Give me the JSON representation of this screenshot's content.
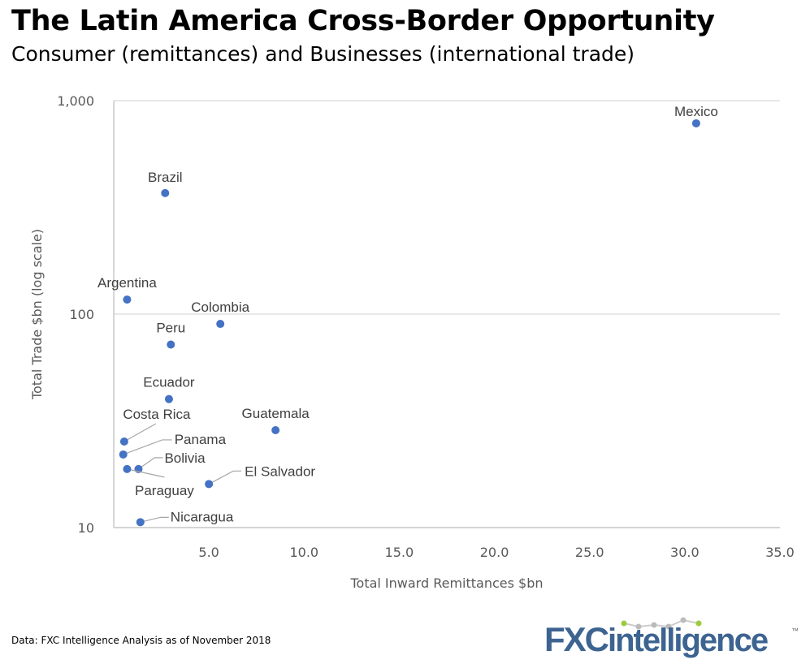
{
  "title": "The Latin America Cross-Border Opportunity",
  "subtitle": "Consumer (remittances) and Businesses (international trade)",
  "source": "Data: FXC Intelligence Analysis as of November 2018",
  "logo": {
    "text_fx": "FXC",
    "text_rest": "intelligence",
    "tm": "™",
    "color": "#3d6491",
    "accent": "#9ccc3c"
  },
  "chart_data": {
    "type": "scatter",
    "xlabel": "Total Inward Remittances $bn",
    "ylabel": "Total Trade $bn (log scale)",
    "xlim": [
      0,
      35
    ],
    "ylim": [
      10,
      1000
    ],
    "yscale": "log",
    "xticks": [
      5,
      10,
      15,
      20,
      25,
      30,
      35
    ],
    "xtick_labels": [
      "5.0",
      "10.0",
      "15.0",
      "20.0",
      "25.0",
      "30.0",
      "35.0"
    ],
    "yticks": [
      10,
      100,
      1000
    ],
    "ytick_labels": [
      "10",
      "100",
      "1,000"
    ],
    "grid": "horizontal",
    "point_color": "#4472c4",
    "points": [
      {
        "label": "Mexico",
        "x": 30.6,
        "y": 783
      },
      {
        "label": "Brazil",
        "x": 2.7,
        "y": 369
      },
      {
        "label": "Argentina",
        "x": 0.7,
        "y": 117
      },
      {
        "label": "Colombia",
        "x": 5.6,
        "y": 90
      },
      {
        "label": "Peru",
        "x": 3.0,
        "y": 72
      },
      {
        "label": "Ecuador",
        "x": 2.9,
        "y": 40
      },
      {
        "label": "Guatemala",
        "x": 8.5,
        "y": 28.6
      },
      {
        "label": "Costa Rica",
        "x": 0.55,
        "y": 25.3
      },
      {
        "label": "Panama",
        "x": 0.5,
        "y": 22
      },
      {
        "label": "Bolivia",
        "x": 1.3,
        "y": 18.8
      },
      {
        "label": "Paraguay",
        "x": 0.7,
        "y": 18.8
      },
      {
        "label": "El Salvador",
        "x": 5.0,
        "y": 16
      },
      {
        "label": "Nicaragua",
        "x": 1.4,
        "y": 10.6
      }
    ]
  }
}
